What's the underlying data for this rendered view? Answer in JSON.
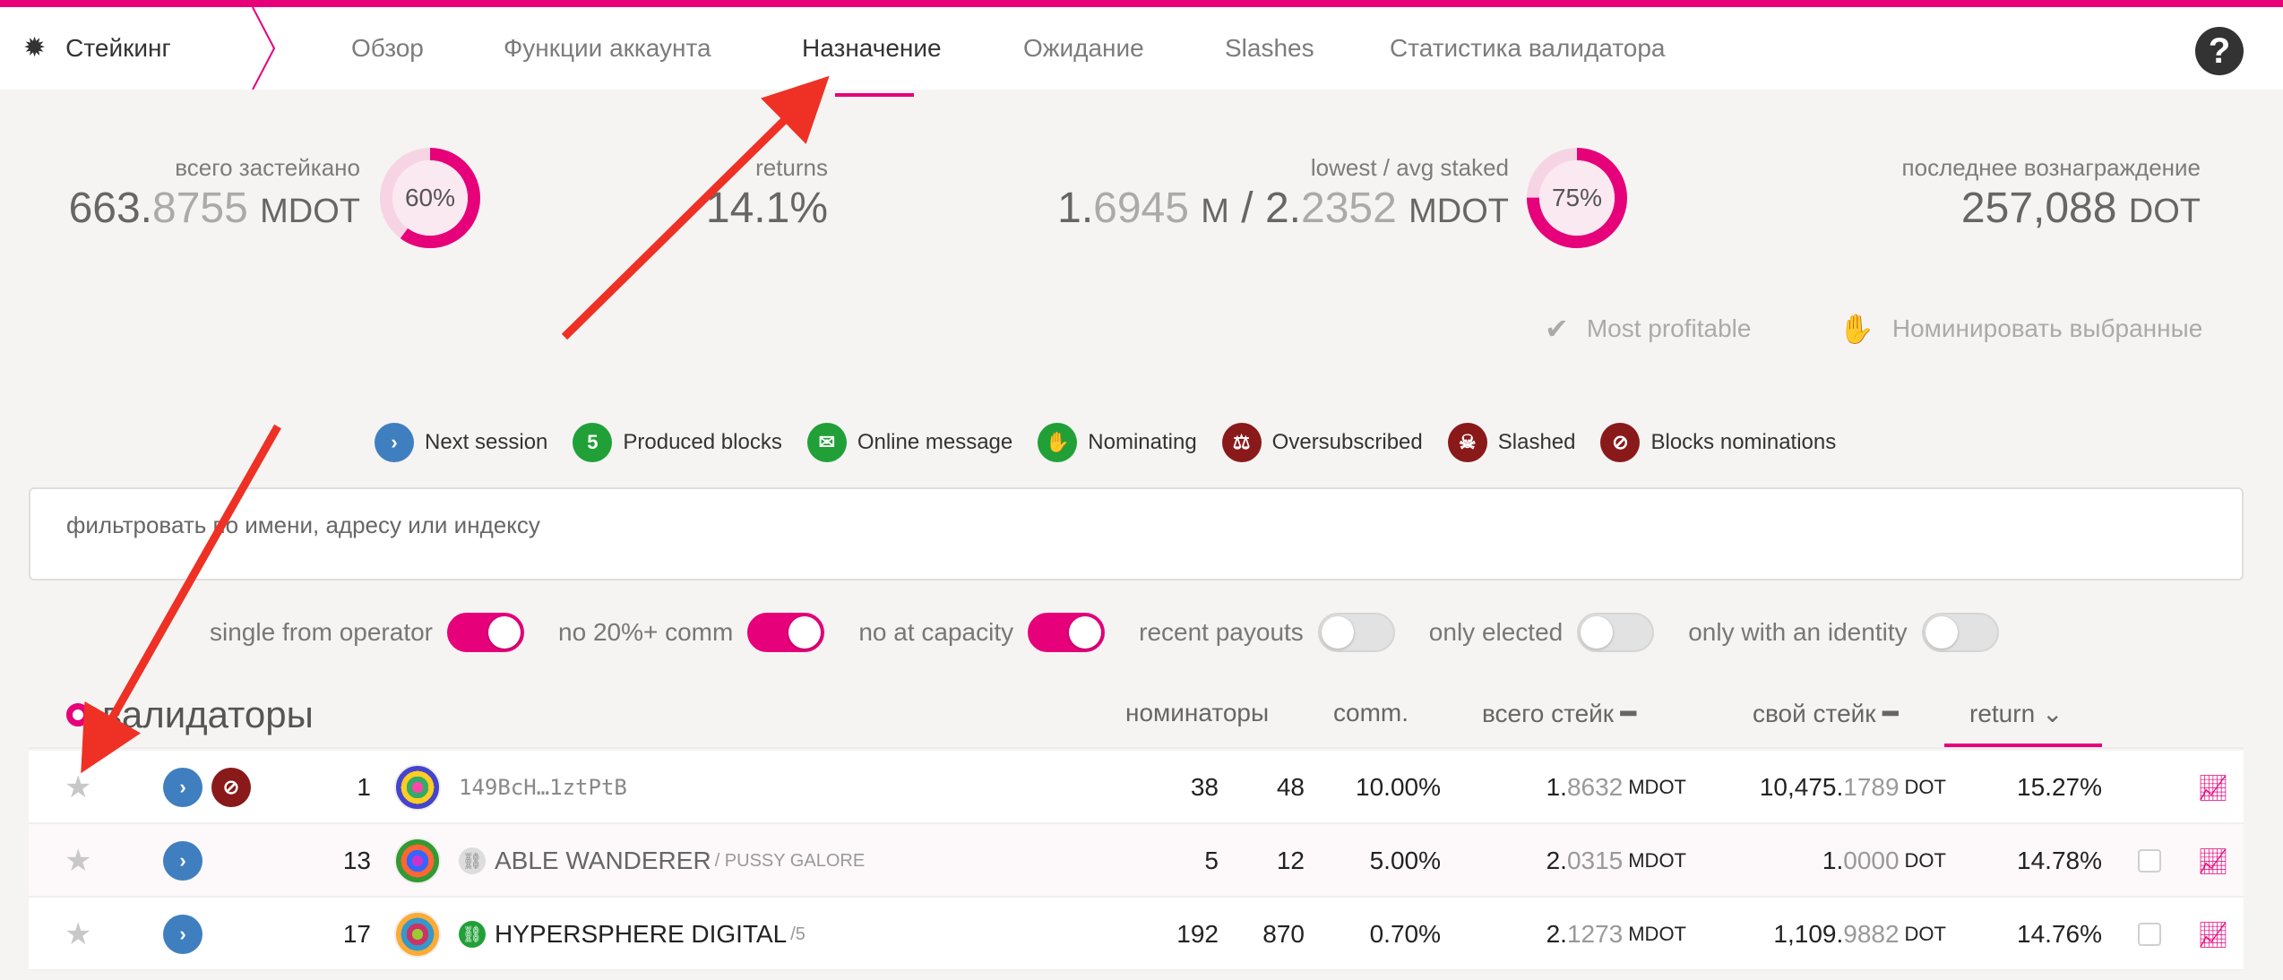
{
  "nav": {
    "brand": "Стейкинг",
    "tabs": [
      "Обзор",
      "Функции аккаунта",
      "Назначение",
      "Ожидание",
      "Slashes",
      "Статистика валидатора"
    ],
    "active_tab": "Назначение",
    "help": "?"
  },
  "summary": {
    "total_staked": {
      "label": "всего застейкано",
      "int": "663.",
      "frac": "8755",
      "unit": "MDOT",
      "ring_percent": "60%",
      "ring_value": 60
    },
    "returns": {
      "label": "returns",
      "value": "14.1%"
    },
    "lowest_avg": {
      "label": "lowest / avg staked",
      "low_int": "1.",
      "low_frac": "6945",
      "low_unit": "M",
      "sep": "/",
      "avg_int": "2.",
      "avg_frac": "2352",
      "avg_unit": "MDOT",
      "ring_percent": "75%",
      "ring_value": 75
    },
    "last_reward": {
      "label": "последнее вознаграждение",
      "value": "257,088",
      "unit": "DOT"
    }
  },
  "actions": {
    "most_profitable": "Most profitable",
    "nominate_selected": "Номинировать выбранные"
  },
  "legend": [
    {
      "badge": "›",
      "label": "Next session",
      "color": "blue",
      "icon": "chevron-right-icon"
    },
    {
      "badge": "5",
      "label": "Produced blocks",
      "color": "green",
      "icon": "blocks-count-icon"
    },
    {
      "badge": "✉",
      "label": "Online message",
      "color": "green",
      "icon": "envelope-icon"
    },
    {
      "badge": "✋",
      "label": "Nominating",
      "color": "green",
      "icon": "hand-icon"
    },
    {
      "badge": "⚖",
      "label": "Oversubscribed",
      "color": "red",
      "icon": "balance-scale-icon"
    },
    {
      "badge": "☠",
      "label": "Slashed",
      "color": "red",
      "icon": "skull-icon"
    },
    {
      "badge": "⊘",
      "label": "Blocks nominations",
      "color": "red",
      "icon": "user-slash-icon"
    }
  ],
  "filter": {
    "placeholder": "фильтровать по имени, адресу или индексу"
  },
  "toggles": [
    {
      "label": "single from operator",
      "on": true
    },
    {
      "label": "no 20%+ comm",
      "on": true
    },
    {
      "label": "no at capacity",
      "on": true
    },
    {
      "label": "recent payouts",
      "on": false
    },
    {
      "label": "only elected",
      "on": false
    },
    {
      "label": "only with an identity",
      "on": false
    }
  ],
  "table": {
    "title": "валидаторы",
    "headers": {
      "nominators": "номинаторы",
      "comm": "comm.",
      "total_stake": "всего стейк",
      "own_stake": "свой стейк",
      "return": "return"
    },
    "rows": [
      {
        "rank": "1",
        "name": "149BcH…1ztPtB",
        "sub": "",
        "nom_a": "38",
        "nom_b": "48",
        "comm": "10.00%",
        "total_int": "1.",
        "total_frac": "8632",
        "total_unit": "MDOT",
        "own_int": "10,475.",
        "own_frac": "1789",
        "own_unit": "DOT",
        "ret": "15.27%"
      },
      {
        "rank": "13",
        "name": "ABLE WANDERER",
        "sub": "/ PUSSY GALORE",
        "nom_a": "5",
        "nom_b": "12",
        "comm": "5.00%",
        "total_int": "2.",
        "total_frac": "0315",
        "total_unit": "MDOT",
        "own_int": "1.",
        "own_frac": "0000",
        "own_unit": "DOT",
        "ret": "14.78%"
      },
      {
        "rank": "17",
        "name": "HYPERSPHERE DIGITAL",
        "sub": "/5",
        "nom_a": "192",
        "nom_b": "870",
        "comm": "0.70%",
        "total_int": "2.",
        "total_frac": "1273",
        "total_unit": "MDOT",
        "own_int": "1,109.",
        "own_frac": "9882",
        "own_unit": "DOT",
        "ret": "14.76%"
      }
    ]
  },
  "colors": {
    "accent": "#e6007a",
    "blue": "#3f7fbf",
    "green": "#21a038",
    "red": "#8a1a1a",
    "annotation_arrow": "#ee3124"
  }
}
